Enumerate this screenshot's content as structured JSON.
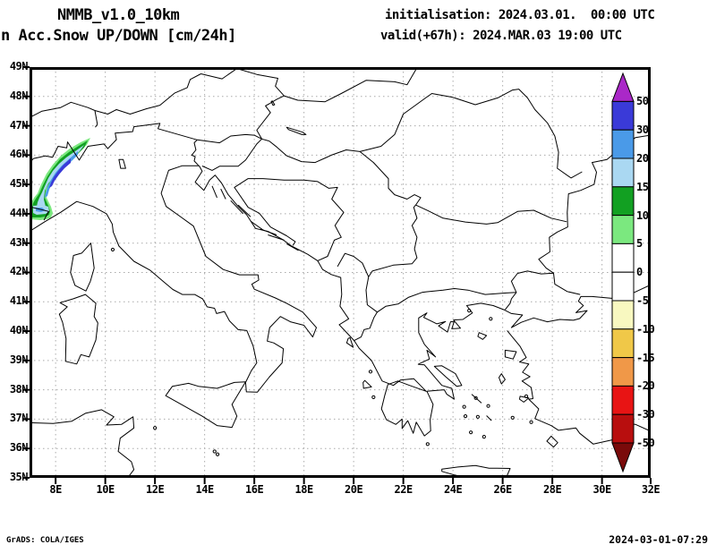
{
  "header": {
    "model": "NMMB_v1.0_10km",
    "product": "n Acc.Snow UP/DOWN [cm/24h]",
    "init": "initialisation: 2024.03.01.  00:00 UTC",
    "valid": "valid(+67h): 2024.MAR.03 19:00 UTC"
  },
  "footer": {
    "credit": "GrADS: COLA/IGES",
    "timestamp": "2024-03-01-07:29"
  },
  "axes": {
    "lat_labels": [
      "49N",
      "48N",
      "47N",
      "46N",
      "45N",
      "44N",
      "43N",
      "42N",
      "41N",
      "40N",
      "39N",
      "38N",
      "37N",
      "36N",
      "35N"
    ],
    "lon_labels": [
      "8E",
      "10E",
      "12E",
      "14E",
      "16E",
      "18E",
      "20E",
      "22E",
      "24E",
      "26E",
      "28E",
      "30E",
      "32E"
    ]
  },
  "colorbar": {
    "unit": "cm/24h",
    "tick_labels": [
      "50",
      "30",
      "20",
      "15",
      "10",
      "5",
      "0",
      "-5",
      "-10",
      "-15",
      "-20",
      "-30",
      "-50"
    ],
    "segment_colors_top_to_bottom": [
      "#aa28c8",
      "#3a3ad8",
      "#4a9ae8",
      "#aad8f2",
      "#12a022",
      "#7be87f",
      "#ffffff",
      "#ffffff",
      "#f8f8c0",
      "#f0c848",
      "#f09848",
      "#e81414",
      "#b80e0e",
      "#7a0a0a"
    ]
  },
  "chart_data": {
    "type": "map-filled-contour",
    "units": "cm/24h",
    "lon_range": [
      7,
      32
    ],
    "lat_range": [
      35,
      49
    ],
    "grid": {
      "lat_step_deg": 1,
      "lon_step_deg": 2,
      "style": "dashed-gray"
    },
    "contour_levels": [
      -50,
      -30,
      -20,
      -15,
      -10,
      -5,
      0,
      5,
      10,
      15,
      20,
      30,
      50
    ],
    "shaded_features": [
      {
        "name": "snow-accumulation-band",
        "description": "Accumulated snow band along the western Alps (NW Italy / SE France border)",
        "lon_extent": [
          7.0,
          9.6
        ],
        "lat_extent": [
          43.9,
          46.4
        ],
        "peak_value_band": "30-50 cm/24h",
        "shading_order_outer_to_inner": [
          "5-10",
          "10-15",
          "15-20",
          "20-30",
          "30-50"
        ]
      }
    ]
  }
}
